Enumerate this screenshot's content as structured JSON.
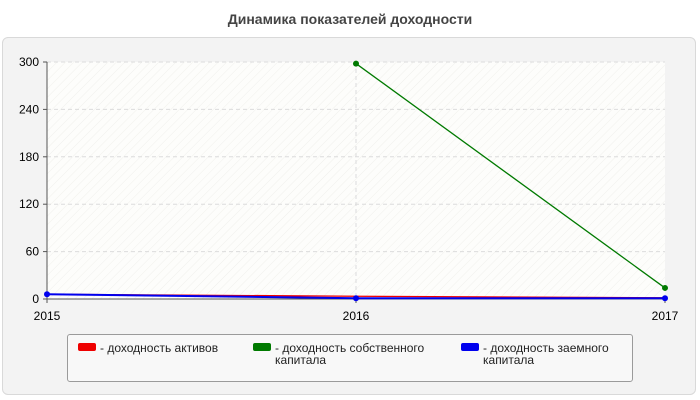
{
  "chart_title": "Динамика показателей доходности",
  "chart_data": {
    "type": "line",
    "title": "Динамика показателей доходности",
    "xlabel": "",
    "ylabel": "",
    "x": [
      "2015",
      "2016",
      "2017"
    ],
    "y_ticks": [
      "0",
      "60",
      "120",
      "180",
      "240",
      "300"
    ],
    "ylim": [
      0,
      300
    ],
    "grid": true,
    "legend_placement": "bottom",
    "series": [
      {
        "name": "- доходность активов",
        "color": "#ee0000",
        "values": [
          6,
          3.5,
          1.5
        ]
      },
      {
        "name": "- доходность собственного капитала",
        "color": "#007a00",
        "values": [
          null,
          298,
          14
        ]
      },
      {
        "name": "- доходность заемного капитала",
        "color": "#0000ee",
        "values": [
          6,
          1,
          1
        ]
      }
    ]
  },
  "legend": {
    "items": [
      {
        "label": "- доходность активов",
        "color": "#ee0000"
      },
      {
        "label": "- доходность собственного капитала",
        "color": "#007a00"
      },
      {
        "label": "- доходность заемного капитала",
        "color": "#0000ee"
      }
    ]
  }
}
